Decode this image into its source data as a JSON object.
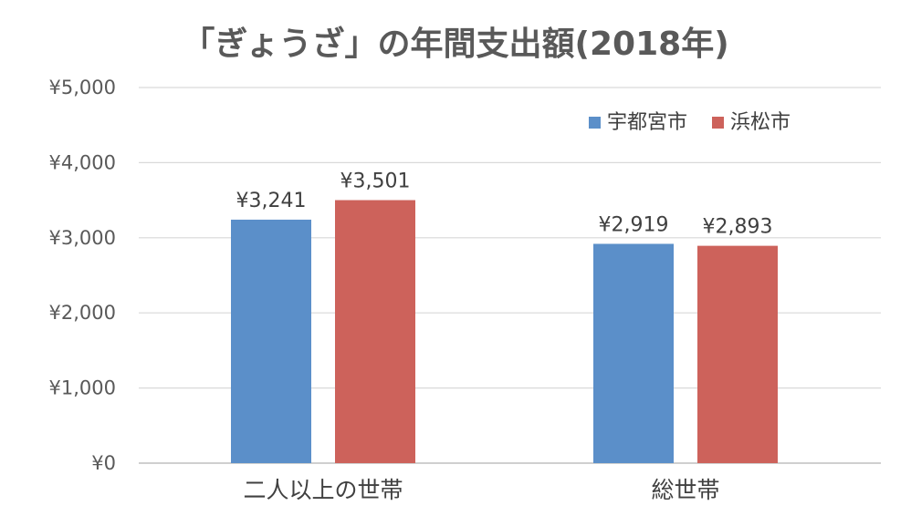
{
  "chart_data": {
    "type": "bar",
    "title": "「ぎょうざ」の年間支出額(2018年)",
    "xlabel": "",
    "ylabel": "",
    "ylim": [
      0,
      5000
    ],
    "yticks": [
      0,
      1000,
      2000,
      3000,
      4000,
      5000
    ],
    "ytick_labels": [
      "¥0",
      "¥1,000",
      "¥2,000",
      "¥3,000",
      "¥4,000",
      "¥5,000"
    ],
    "categories": [
      "二人以上の世帯",
      "総世帯"
    ],
    "series": [
      {
        "name": "宇都宮市",
        "color": "#5b8fc9",
        "values": [
          3241,
          2919
        ],
        "labels": [
          "¥3,241",
          "¥2,919"
        ]
      },
      {
        "name": "浜松市",
        "color": "#cd625b",
        "values": [
          3501,
          2893
        ],
        "labels": [
          "¥3,501",
          "¥2,893"
        ]
      }
    ],
    "grid": true,
    "legend_position": "top-right"
  }
}
